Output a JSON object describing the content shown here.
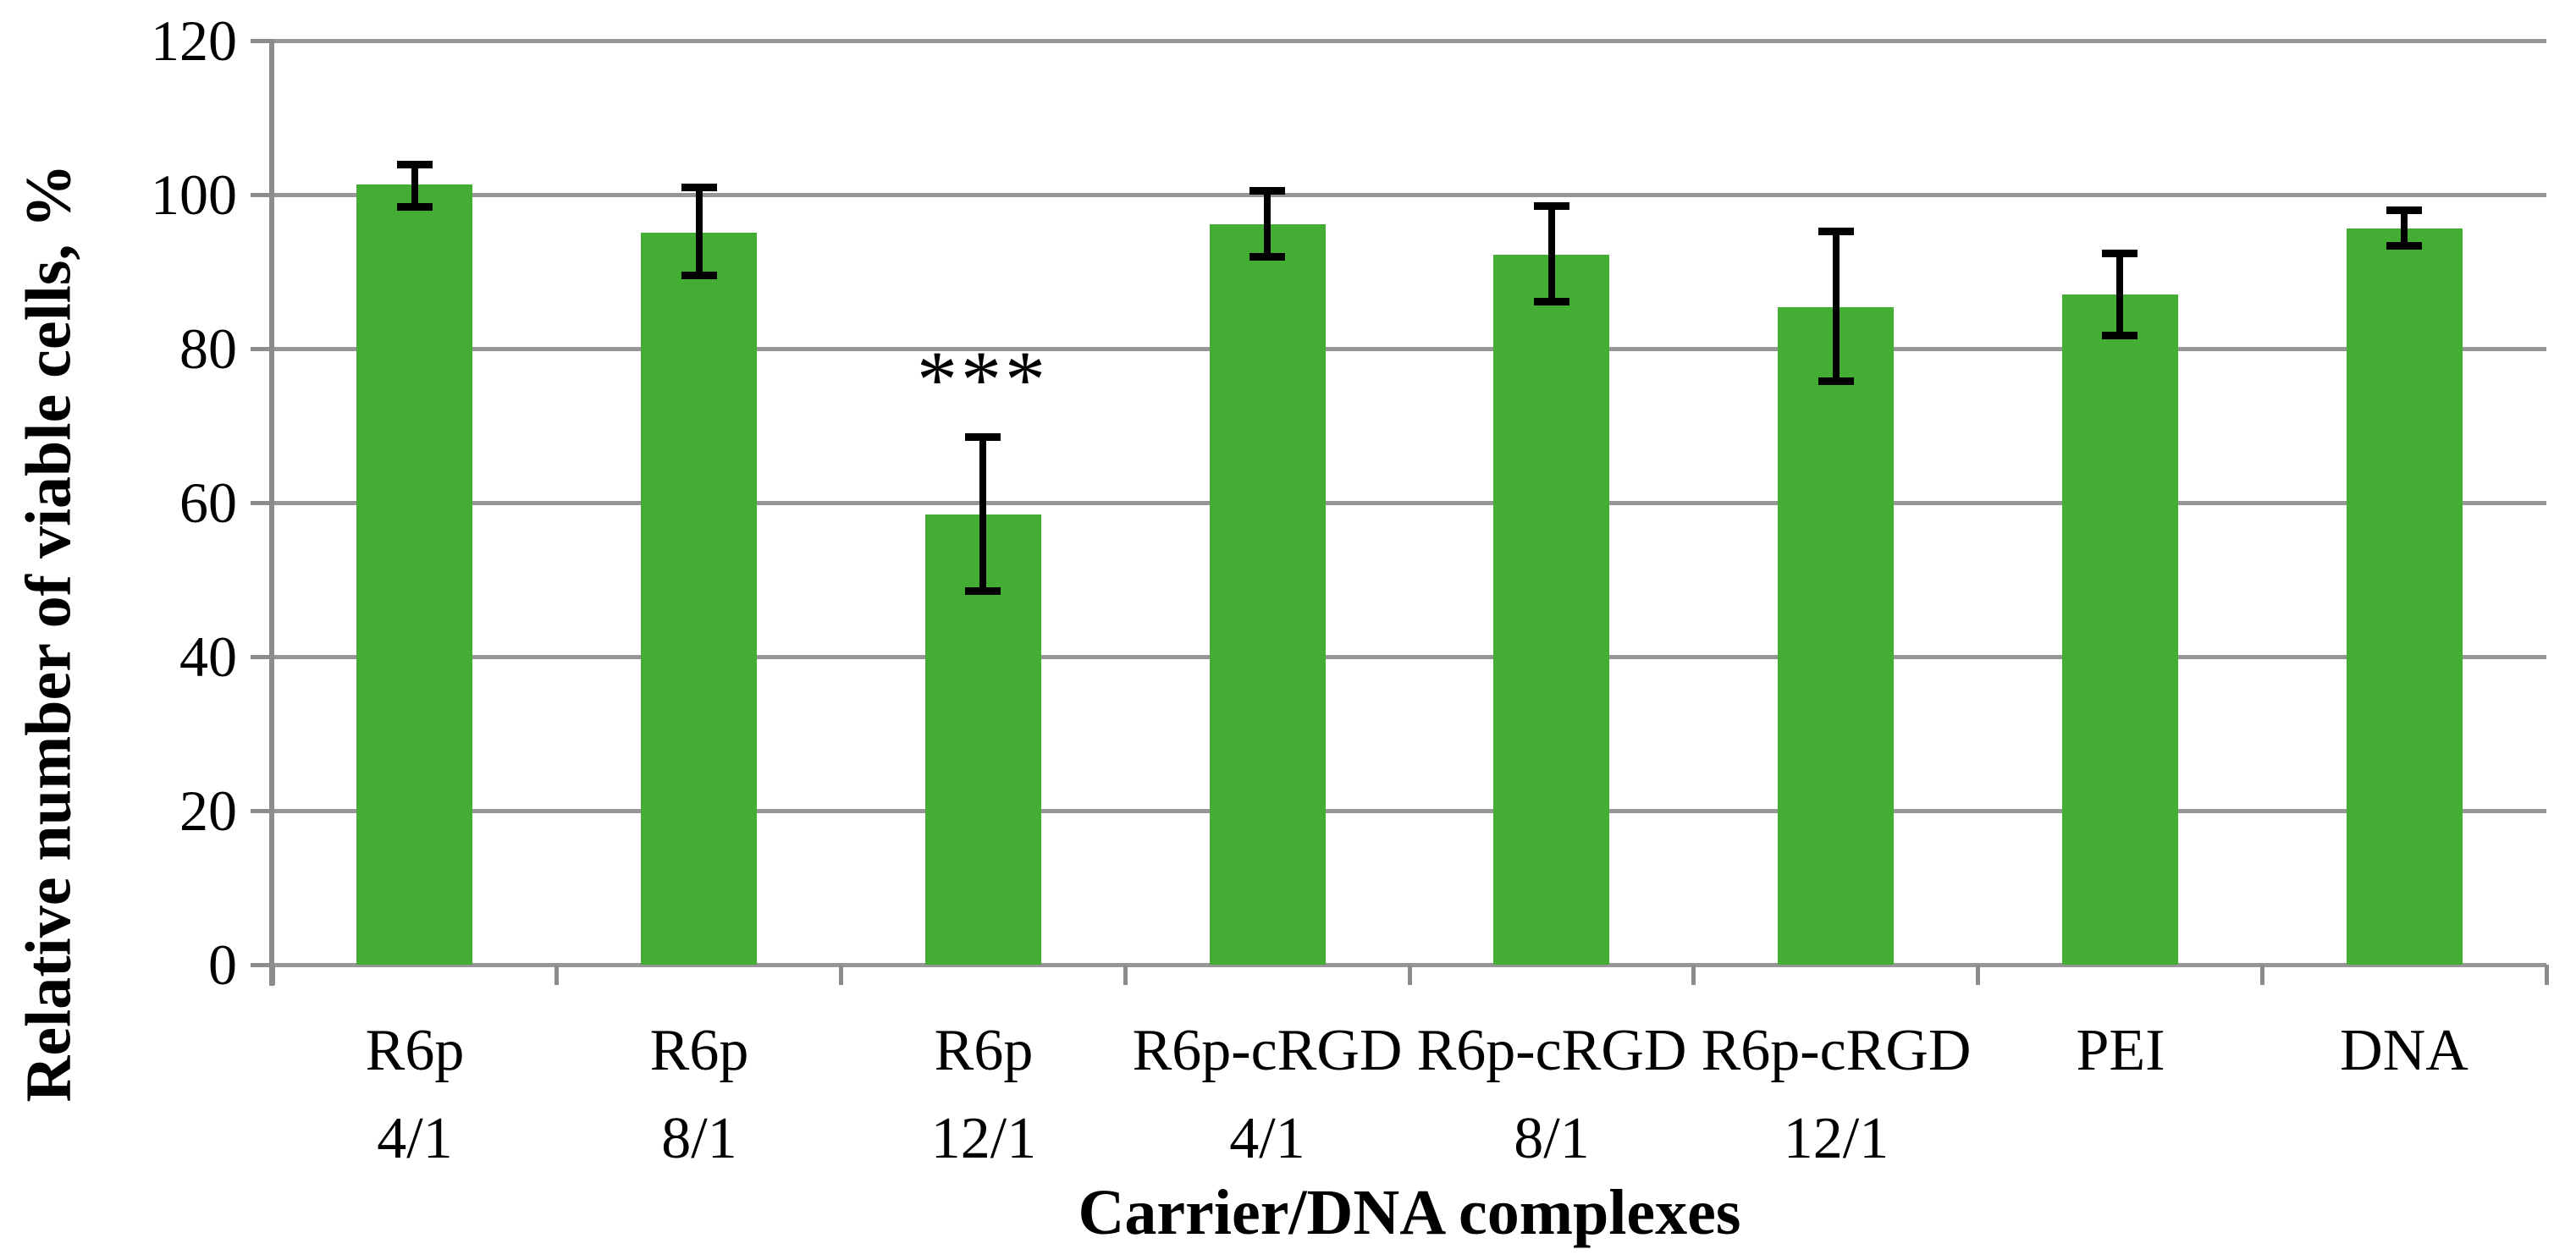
{
  "figure": {
    "background": "#FFFFFF",
    "bar_color": "#43AD34",
    "grid_color": "#969696",
    "axis_color": "#8C8C8C",
    "error_bar_color": "#000000",
    "text_color": "#000000"
  },
  "chart_data": {
    "type": "bar",
    "title": "",
    "xlabel": "Carrier/DNA complexes",
    "ylabel": "Relative number of viable cells, %",
    "ylim": [
      0,
      120
    ],
    "yticks": [
      0,
      20,
      40,
      60,
      80,
      100,
      120
    ],
    "grid": true,
    "legend": false,
    "categories": [
      {
        "line1": "R6p",
        "line2": "4/1"
      },
      {
        "line1": "R6p",
        "line2": "8/1"
      },
      {
        "line1": "R6p",
        "line2": "12/1"
      },
      {
        "line1": "R6p-cRGD",
        "line2": "4/1"
      },
      {
        "line1": "R6p-cRGD",
        "line2": "8/1"
      },
      {
        "line1": "R6p-cRGD",
        "line2": "12/1"
      },
      {
        "line1": "PEI",
        "line2": ""
      },
      {
        "line1": "DNA",
        "line2": ""
      }
    ],
    "values": [
      101.3,
      95.1,
      58.5,
      96.2,
      92.2,
      85.4,
      87.0,
      95.6
    ],
    "error_low": [
      98.3,
      89.4,
      48.5,
      91.9,
      86.0,
      75.7,
      81.7,
      93.3
    ],
    "error_high": [
      104.0,
      101.0,
      68.6,
      100.5,
      98.6,
      95.3,
      92.4,
      98.0
    ],
    "annotations": [
      {
        "bar_index": 2,
        "text": "***"
      }
    ]
  }
}
